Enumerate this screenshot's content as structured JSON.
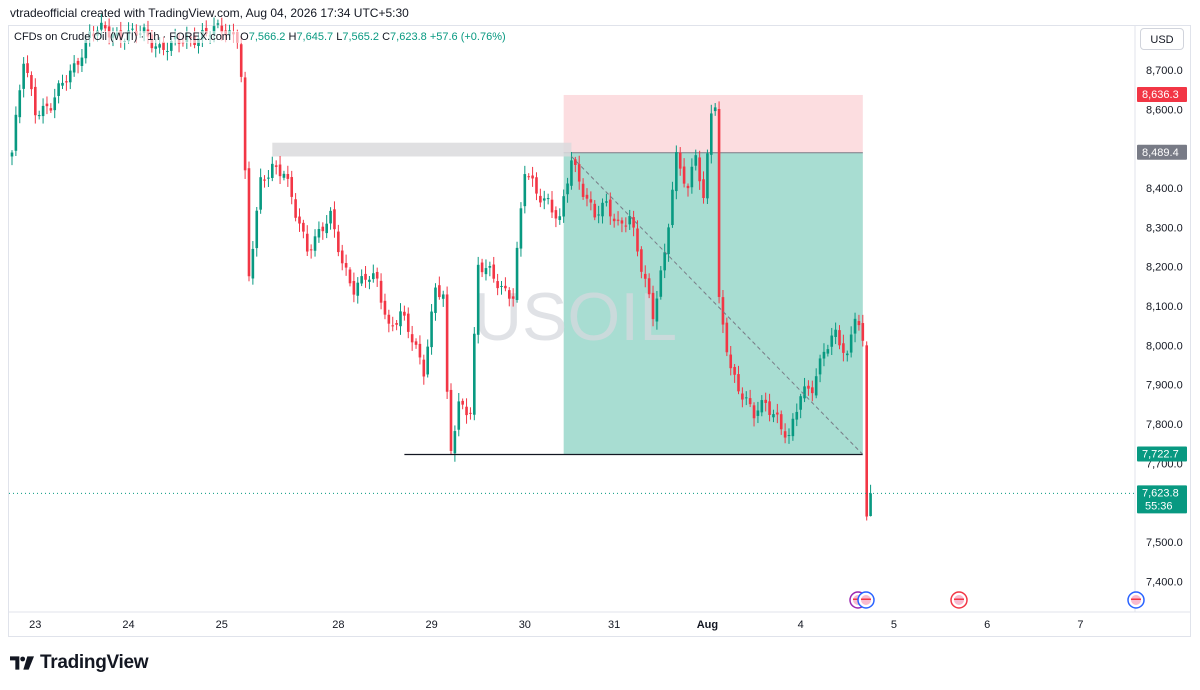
{
  "header": {
    "credit": "vtradeofficial created with TradingView.com, Aug 04, 2026 17:34 UTC+5:30",
    "symbol_desc": "CFDs on Crude Oil (WTI) · 1h · FOREX.com",
    "ohlc": {
      "o_label": "O",
      "o_value": "7,566.2",
      "h_label": "H",
      "h_value": "7,645.7",
      "l_label": "L",
      "l_value": "7,565.2",
      "c_label": "C",
      "c_value": "7,623.8",
      "change": "+57.6 (+0.76%)"
    },
    "currency": "USD"
  },
  "watermark": "USOIL",
  "footer": {
    "brand": "TradingView"
  },
  "colors": {
    "up": "#089981",
    "down": "#f23645",
    "profit_zone": "#a8ddd2",
    "loss_zone": "#fcdde0",
    "supply_zone": "#dadadd",
    "grid": "#e0e3eb"
  },
  "chart_data": {
    "type": "candlestick",
    "title": "CFDs on Crude Oil (WTI) · 1h · FOREX.com",
    "ylim": [
      7330,
      8800
    ],
    "y_ticks": [
      "8,700.0",
      "8,600.0",
      "8,500.0",
      "8,400.0",
      "8,300.0",
      "8,200.0",
      "8,100.0",
      "8,000.0",
      "7,900.0",
      "7,800.0",
      "7,700.0",
      "7,500.0",
      "7,400.0"
    ],
    "y_tick_values": [
      8700,
      8600,
      8500,
      8400,
      8300,
      8200,
      8100,
      8000,
      7900,
      7800,
      7700,
      7500,
      7400
    ],
    "x_tick_labels": [
      "23",
      "24",
      "25",
      "28",
      "29",
      "30",
      "31",
      "Aug",
      "4",
      "5",
      "6",
      "7"
    ],
    "x_tick_bar_index": [
      6,
      30,
      54,
      84,
      108,
      132,
      155,
      179,
      203,
      227,
      251,
      275
    ],
    "price_badges": [
      {
        "label": "8,636.3",
        "value": 8636.3,
        "color": "#f23645"
      },
      {
        "label": "8,489.4",
        "value": 8489.4,
        "color": "#787b86"
      },
      {
        "label": "7,722.7",
        "value": 7722.7,
        "color": "#089981"
      },
      {
        "label": "7,623.8",
        "value": 7623.8,
        "color": "#089981",
        "sub": "55:36"
      }
    ],
    "short_position": {
      "start_bar": 142,
      "end_bar": 219,
      "entry": 8489.4,
      "stop": 8636.3,
      "target": 7722.7
    },
    "supply_zone": {
      "start_bar": 67,
      "end_bar": 144,
      "top": 8515,
      "bottom": 8480
    },
    "horizontal_line": {
      "start_bar": 101,
      "end_bar": 219,
      "value": 7722.7
    },
    "diagonal_line": {
      "start_bar": 144,
      "start_value": 8480,
      "end_bar": 219,
      "end_value": 7722.7
    },
    "current_price": 7623.8,
    "anchors": [
      [
        0,
        8490
      ],
      [
        3,
        8720
      ],
      [
        6,
        8600
      ],
      [
        10,
        8610
      ],
      [
        13,
        8660
      ],
      [
        16,
        8710
      ],
      [
        20,
        8790
      ],
      [
        24,
        8800
      ],
      [
        27,
        8790
      ],
      [
        30,
        8790
      ],
      [
        34,
        8790
      ],
      [
        38,
        8760
      ],
      [
        41,
        8760
      ],
      [
        48,
        8790
      ],
      [
        54,
        8800
      ],
      [
        58,
        8790
      ],
      [
        59,
        8690
      ],
      [
        61,
        8170
      ],
      [
        64,
        8410
      ],
      [
        67,
        8460
      ],
      [
        70,
        8440
      ],
      [
        73,
        8330
      ],
      [
        76,
        8250
      ],
      [
        79,
        8290
      ],
      [
        82,
        8320
      ],
      [
        85,
        8210
      ],
      [
        88,
        8150
      ],
      [
        91,
        8170
      ],
      [
        94,
        8160
      ],
      [
        97,
        8050
      ],
      [
        100,
        8080
      ],
      [
        103,
        8010
      ],
      [
        106,
        7940
      ],
      [
        109,
        8150
      ],
      [
        111,
        8120
      ],
      [
        112,
        7860
      ],
      [
        113,
        7730
      ],
      [
        115,
        7850
      ],
      [
        118,
        7840
      ],
      [
        120,
        8200
      ],
      [
        123,
        8180
      ],
      [
        126,
        8150
      ],
      [
        129,
        8130
      ],
      [
        132,
        8440
      ],
      [
        135,
        8390
      ],
      [
        138,
        8370
      ],
      [
        141,
        8310
      ],
      [
        144,
        8470
      ],
      [
        147,
        8400
      ],
      [
        150,
        8330
      ],
      [
        153,
        8350
      ],
      [
        156,
        8310
      ],
      [
        159,
        8330
      ],
      [
        162,
        8190
      ],
      [
        165,
        8080
      ],
      [
        168,
        8240
      ],
      [
        171,
        8470
      ],
      [
        174,
        8390
      ],
      [
        176,
        8500
      ],
      [
        178,
        8370
      ],
      [
        180,
        8600
      ],
      [
        181,
        8600
      ],
      [
        182,
        8100
      ],
      [
        185,
        7940
      ],
      [
        188,
        7880
      ],
      [
        191,
        7820
      ],
      [
        194,
        7850
      ],
      [
        197,
        7820
      ],
      [
        200,
        7760
      ],
      [
        203,
        7870
      ],
      [
        206,
        7900
      ],
      [
        209,
        7990
      ],
      [
        212,
        8020
      ],
      [
        215,
        7970
      ],
      [
        217,
        8090
      ],
      [
        218,
        8060
      ],
      [
        219,
        8000
      ],
      [
        220,
        7560
      ],
      [
        221,
        7623.8
      ]
    ]
  }
}
